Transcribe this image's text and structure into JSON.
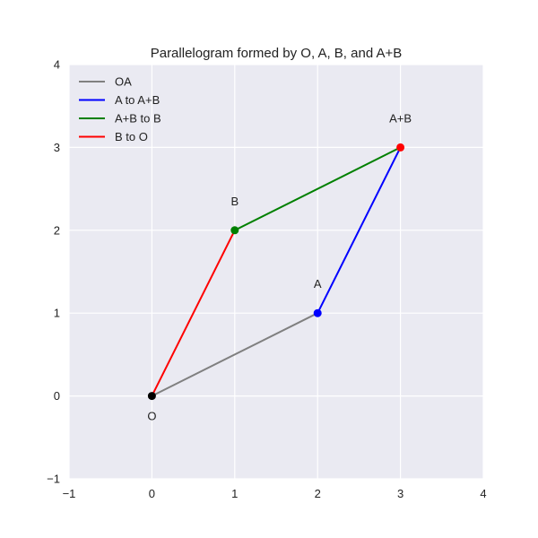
{
  "chart_data": {
    "type": "line",
    "title": "Parallelogram formed by O, A, B, and A+B",
    "xlabel": "",
    "ylabel": "",
    "xlim": [
      -1,
      4
    ],
    "ylim": [
      -1,
      4
    ],
    "x_ticks": [
      -1,
      0,
      1,
      2,
      3,
      4
    ],
    "y_ticks": [
      -1,
      0,
      1,
      2,
      3,
      4
    ],
    "x_tick_labels": [
      "−1",
      "0",
      "1",
      "2",
      "3",
      "4"
    ],
    "y_tick_labels": [
      "−1",
      "0",
      "1",
      "2",
      "3",
      "4"
    ],
    "grid": true,
    "legend_position": "top-left",
    "series": [
      {
        "name": "OA",
        "color": "#808080",
        "x": [
          0,
          2
        ],
        "y": [
          0,
          1
        ]
      },
      {
        "name": "A to A+B",
        "color": "#0000ff",
        "x": [
          2,
          3
        ],
        "y": [
          1,
          3
        ]
      },
      {
        "name": "A+B to B",
        "color": "#008000",
        "x": [
          3,
          1
        ],
        "y": [
          3,
          2
        ]
      },
      {
        "name": "B to O",
        "color": "#ff0000",
        "x": [
          1,
          0
        ],
        "y": [
          2,
          0
        ]
      }
    ],
    "points": [
      {
        "label": "O",
        "x": 0,
        "y": 0,
        "color": "#000000",
        "label_position": "below"
      },
      {
        "label": "A",
        "x": 2,
        "y": 1,
        "color": "#0000ff",
        "label_position": "above"
      },
      {
        "label": "B",
        "x": 1,
        "y": 2,
        "color": "#008000",
        "label_position": "above"
      },
      {
        "label": "A+B",
        "x": 3,
        "y": 3,
        "color": "#ff0000",
        "label_position": "above"
      }
    ],
    "colors": {
      "plot_background": "#eaeaf2",
      "grid": "#ffffff"
    }
  }
}
